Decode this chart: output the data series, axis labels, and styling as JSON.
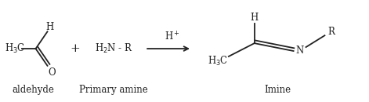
{
  "bg_color": "#ffffff",
  "text_color": "#222222",
  "font_size": 8.5,
  "font_size_name": 8.5,
  "aldehyde_label": "aldehyde",
  "amine_label": "Primary amine",
  "imine_label": "Imine",
  "fig_width": 4.71,
  "fig_height": 1.3,
  "dpi": 100,
  "lw": 1.3
}
